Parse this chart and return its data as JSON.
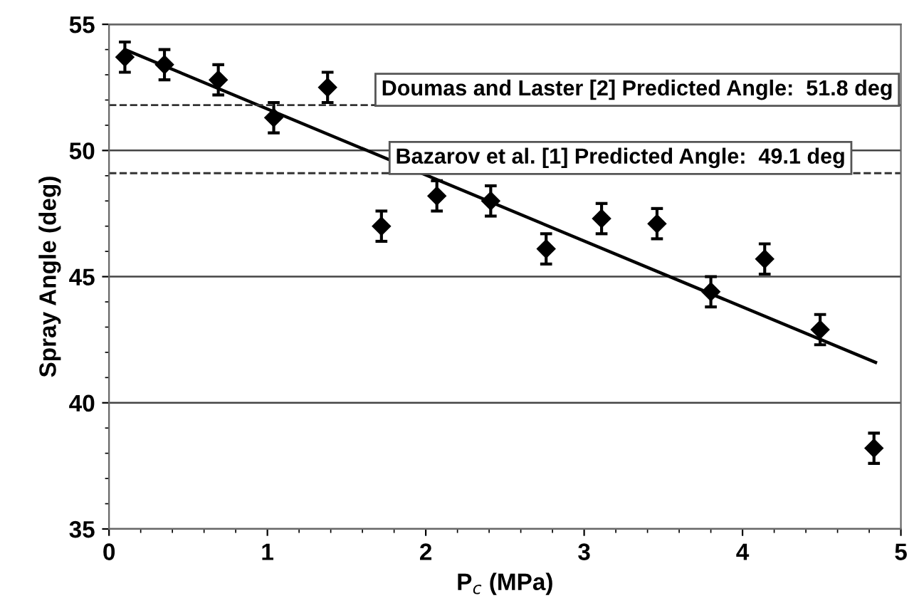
{
  "chart_data": {
    "type": "scatter",
    "xlabel": "P$_{c}$ (MPa)",
    "ylabel": "Spray Angle (deg)",
    "xlim": [
      0,
      5
    ],
    "xticks": [
      0,
      1,
      2,
      3,
      4,
      5
    ],
    "ylim": [
      35,
      55
    ],
    "yticks": [
      35,
      40,
      45,
      50,
      55
    ],
    "grid": "y",
    "marker": "diamond",
    "series": [
      {
        "color": "#000000",
        "x": [
          0.1,
          0.35,
          0.69,
          1.04,
          1.38,
          1.72,
          2.07,
          2.41,
          2.76,
          3.11,
          3.46,
          3.8,
          4.14,
          4.49,
          4.83
        ],
        "values": [
          53.7,
          53.4,
          52.8,
          51.3,
          52.5,
          47.0,
          48.2,
          48.0,
          46.1,
          47.3,
          47.1,
          44.4,
          45.7,
          42.9,
          38.2
        ],
        "errors": [
          0.6,
          0.6,
          0.6,
          0.6,
          0.6,
          0.6,
          0.6,
          0.6,
          0.6,
          0.6,
          0.6,
          0.6,
          0.6,
          0.6,
          0.6
        ]
      },
      {
        "type": "line",
        "color": "#000000",
        "x": [
          0.1,
          4.84
        ],
        "values": [
          54.0,
          41.6
        ],
        "marker": "none",
        "line_style": "solid"
      }
    ],
    "ref_lines": [
      {
        "axis": "y",
        "value": 51.8,
        "label": "Doumas and Laster [2] Predicted Angle:  51.8 deg",
        "line_style": "dashed",
        "color": "#333333"
      },
      {
        "axis": "y",
        "value": 49.1,
        "label": "Bazarov et al. [1] Predicted Angle:  49.1 deg",
        "line_style": "dashed",
        "color": "#333333"
      }
    ]
  }
}
